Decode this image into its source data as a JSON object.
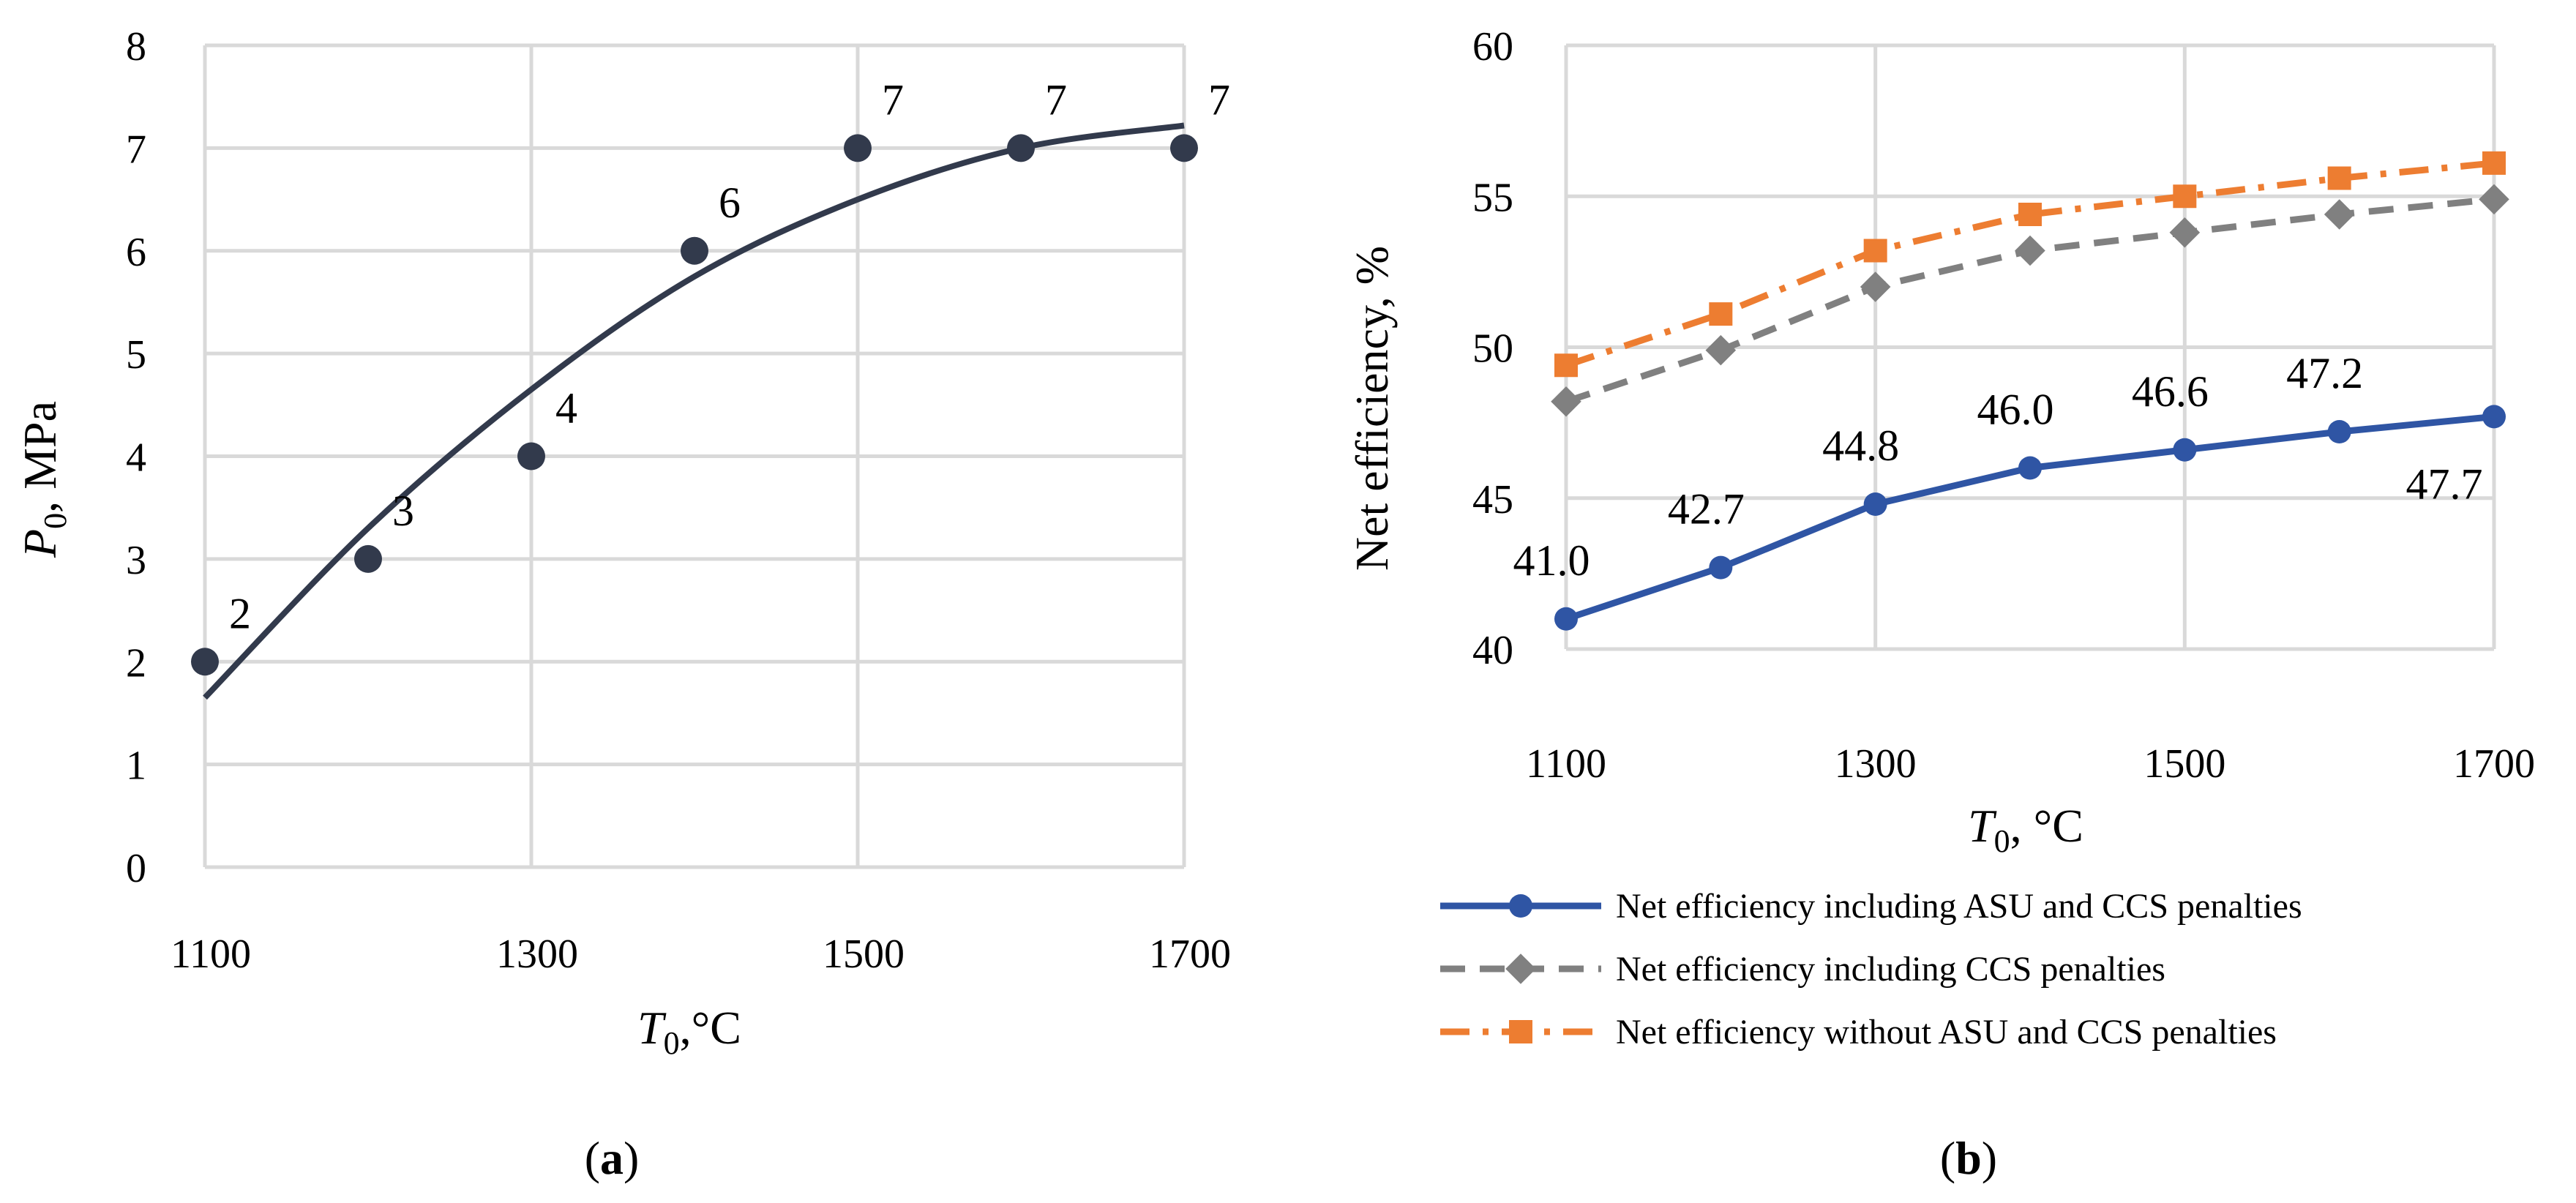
{
  "chart_data": [
    {
      "panel": "(a)",
      "type": "scatter",
      "xlabel": {
        "main": "T",
        "sub": "0",
        "tail": ",°C"
      },
      "ylabel": {
        "main": "P",
        "sub": "0",
        "tail": ", MPa"
      },
      "xlim": [
        1100,
        1700
      ],
      "ylim": [
        0,
        8
      ],
      "xticks": [
        1100,
        1300,
        1500,
        1700
      ],
      "yticks": [
        0,
        1,
        2,
        3,
        4,
        5,
        6,
        7,
        8
      ],
      "grid": true,
      "series": [
        {
          "x": [
            1100,
            1200,
            1300,
            1400,
            1500,
            1600,
            1700
          ],
          "values": [
            2,
            3,
            4,
            6,
            7,
            7,
            7
          ],
          "labels": [
            "2",
            "3",
            "4",
            "6",
            "7",
            "7",
            "7"
          ],
          "color": "#323a4c"
        }
      ],
      "trendline": {
        "type": "polynomial",
        "x": [
          1100,
          1200,
          1300,
          1400,
          1500,
          1600,
          1700
        ],
        "values": [
          1.65,
          3.3,
          4.65,
          5.75,
          6.5,
          7.0,
          7.22
        ],
        "color": "#323a4c"
      }
    },
    {
      "panel": "(b)",
      "type": "line",
      "xlabel": {
        "main": "T",
        "sub": "0",
        "tail": ", °C"
      },
      "ylabel": "Net efficiency, %",
      "xlim": [
        1100,
        1700
      ],
      "ylim": [
        40,
        60
      ],
      "xticks": [
        1100,
        1300,
        1500,
        1700
      ],
      "yticks": [
        40,
        45,
        50,
        55,
        60
      ],
      "grid": true,
      "legend": "bottom",
      "x": [
        1100,
        1200,
        1300,
        1400,
        1500,
        1600,
        1700
      ],
      "series": [
        {
          "name": "Net efficiency including ASU and CCS penalties",
          "values": [
            41.0,
            42.7,
            44.8,
            46.0,
            46.6,
            47.2,
            47.7
          ],
          "labels": [
            "41.0",
            "42.7",
            "44.8",
            "46.0",
            "46.6",
            "47.2",
            "47.7"
          ],
          "color": "#2f55a4",
          "marker": "circle",
          "dash": "solid"
        },
        {
          "name": "Net efficiency including CCS penalties",
          "values": [
            48.2,
            49.9,
            52.0,
            53.2,
            53.8,
            54.4,
            54.9
          ],
          "color": "#808080",
          "marker": "diamond",
          "dash": "dash"
        },
        {
          "name": "Net efficiency without ASU and CCS penalties",
          "values": [
            49.4,
            51.1,
            53.2,
            54.4,
            55.0,
            55.6,
            56.1
          ],
          "color": "#ed7d31",
          "marker": "square",
          "dash": "dashdot"
        }
      ]
    }
  ]
}
